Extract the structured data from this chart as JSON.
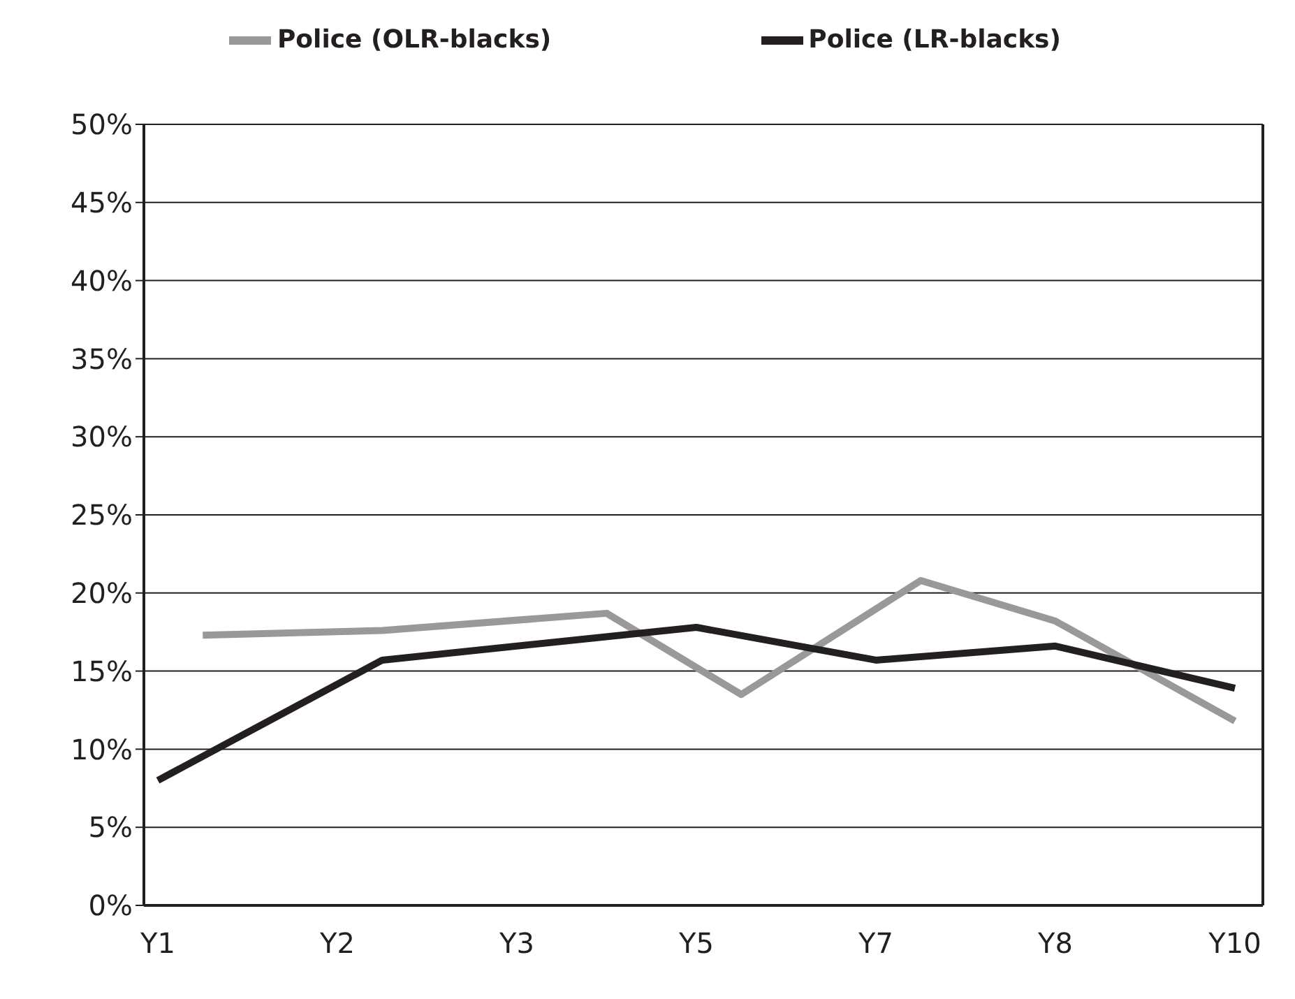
{
  "chart_data": {
    "type": "line",
    "categories": [
      "Y1",
      null,
      null,
      null,
      "Y2",
      null,
      null,
      null,
      "Y3",
      null,
      null,
      null,
      "Y5",
      null,
      null,
      null,
      "Y7",
      null,
      null,
      null,
      "Y8",
      null,
      null,
      null,
      "Y10"
    ],
    "ylim": [
      0,
      50
    ],
    "yticks": [
      {
        "value": 0,
        "label": "0%"
      },
      {
        "value": 5,
        "label": "5%"
      },
      {
        "value": 10,
        "label": "10%"
      },
      {
        "value": 15,
        "label": "15%"
      },
      {
        "value": 20,
        "label": "20%"
      },
      {
        "value": 25,
        "label": "25%"
      },
      {
        "value": 30,
        "label": "30%"
      },
      {
        "value": 35,
        "label": "35%"
      },
      {
        "value": 40,
        "label": "40%"
      },
      {
        "value": 45,
        "label": "45%"
      },
      {
        "value": 50,
        "label": "50%"
      }
    ],
    "grid": "y",
    "legend": "top",
    "marker": "none",
    "series": [
      {
        "name": "Police (OLR-blacks)",
        "color": "#999999",
        "values": [
          null,
          17.3,
          null,
          null,
          null,
          17.6,
          null,
          null,
          null,
          null,
          18.7,
          null,
          null,
          13.5,
          null,
          null,
          null,
          20.8,
          null,
          null,
          18.2,
          null,
          null,
          null,
          11.8
        ]
      },
      {
        "name": "Police (LR-blacks)",
        "color": "#231f20",
        "values": [
          8.0,
          null,
          null,
          null,
          null,
          15.7,
          null,
          null,
          null,
          null,
          null,
          null,
          17.8,
          null,
          null,
          null,
          15.7,
          null,
          null,
          null,
          16.6,
          null,
          null,
          null,
          13.9
        ]
      }
    ]
  }
}
